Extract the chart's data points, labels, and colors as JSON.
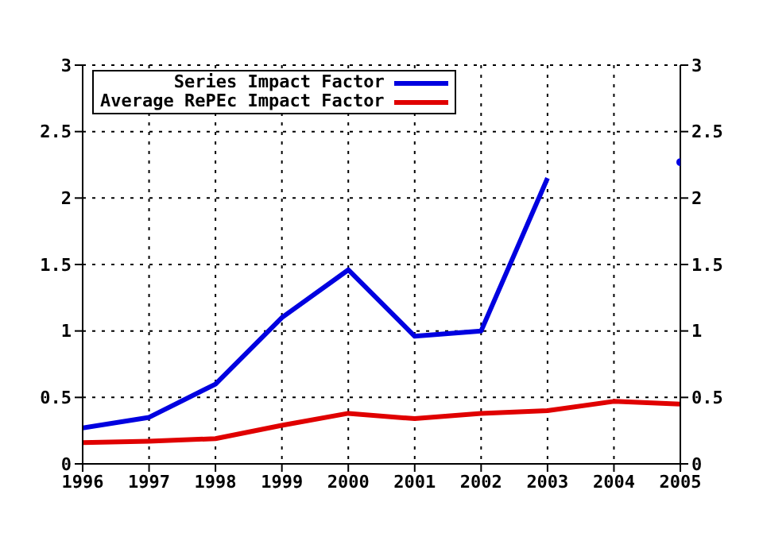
{
  "chart_data": {
    "type": "line",
    "x": [
      1996,
      1997,
      1998,
      1999,
      2000,
      2001,
      2002,
      2003,
      2004,
      2005
    ],
    "series": [
      {
        "name": "Series Impact Factor",
        "color": "#0000e0",
        "values": [
          0.27,
          0.35,
          0.6,
          1.1,
          1.46,
          0.96,
          1.0,
          2.15,
          null,
          2.27
        ]
      },
      {
        "name": "Average RePEc Impact Factor",
        "color": "#e00000",
        "values": [
          0.16,
          0.17,
          0.19,
          0.29,
          0.38,
          0.34,
          0.38,
          0.4,
          0.47,
          0.45
        ]
      }
    ],
    "xlim": [
      1996,
      2005
    ],
    "xticks": [
      1996,
      1997,
      1998,
      1999,
      2000,
      2001,
      2002,
      2003,
      2004,
      2005
    ],
    "ylim": [
      0,
      3
    ],
    "yticks": [
      0,
      0.5,
      1,
      1.5,
      2,
      2.5,
      3
    ],
    "y2lim": [
      0,
      3
    ],
    "y2ticks": [
      0,
      0.5,
      1,
      1.5,
      2,
      2.5,
      3
    ],
    "grid": true,
    "legend": "top left",
    "marker": "none",
    "line_style": "solid"
  }
}
